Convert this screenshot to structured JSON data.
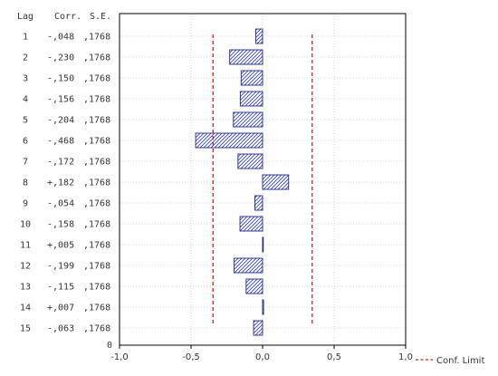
{
  "chart_data": {
    "type": "bar",
    "orientation": "horizontal",
    "columns": {
      "lag": "Lag",
      "corr": "Corr.",
      "se": "S.E."
    },
    "lags": [
      1,
      2,
      3,
      4,
      5,
      6,
      7,
      8,
      9,
      10,
      11,
      12,
      13,
      14,
      15
    ],
    "corr_labels": [
      "-,048",
      "-,230",
      "-,150",
      "-,156",
      "-,204",
      "-,468",
      "-,172",
      "+,182",
      "-,054",
      "-,158",
      "+,005",
      "-,199",
      "-,115",
      "+,007",
      "-,063"
    ],
    "values": [
      -0.048,
      -0.23,
      -0.15,
      -0.156,
      -0.204,
      -0.468,
      -0.172,
      0.182,
      -0.054,
      -0.158,
      0.005,
      -0.199,
      -0.115,
      0.007,
      -0.063
    ],
    "se_labels": [
      ",1768",
      ",1768",
      ",1768",
      ",1768",
      ",1768",
      ",1768",
      ",1768",
      ",1768",
      ",1768",
      ",1768",
      ",1768",
      ",1768",
      ",1768",
      ",1768",
      ",1768"
    ],
    "conf_limit": 0.3465,
    "xlim": [
      -1.0,
      1.0
    ],
    "xticks": [
      -1.0,
      -0.5,
      0.0,
      0.5,
      1.0
    ],
    "xtick_labels": [
      "-1,0",
      "-0,5",
      "0,0",
      "0,5",
      "1,0"
    ],
    "y_zero_label": "0",
    "legend": {
      "label": "Conf. Limit",
      "position": "bottom-right"
    },
    "grid": true,
    "colors": {
      "bar_stroke": "#1f2a8a",
      "bar_hatch": "#2b3aa8",
      "conf_line": "#cc2222",
      "grid": "#c8c8c8",
      "axis": "#000000"
    }
  }
}
